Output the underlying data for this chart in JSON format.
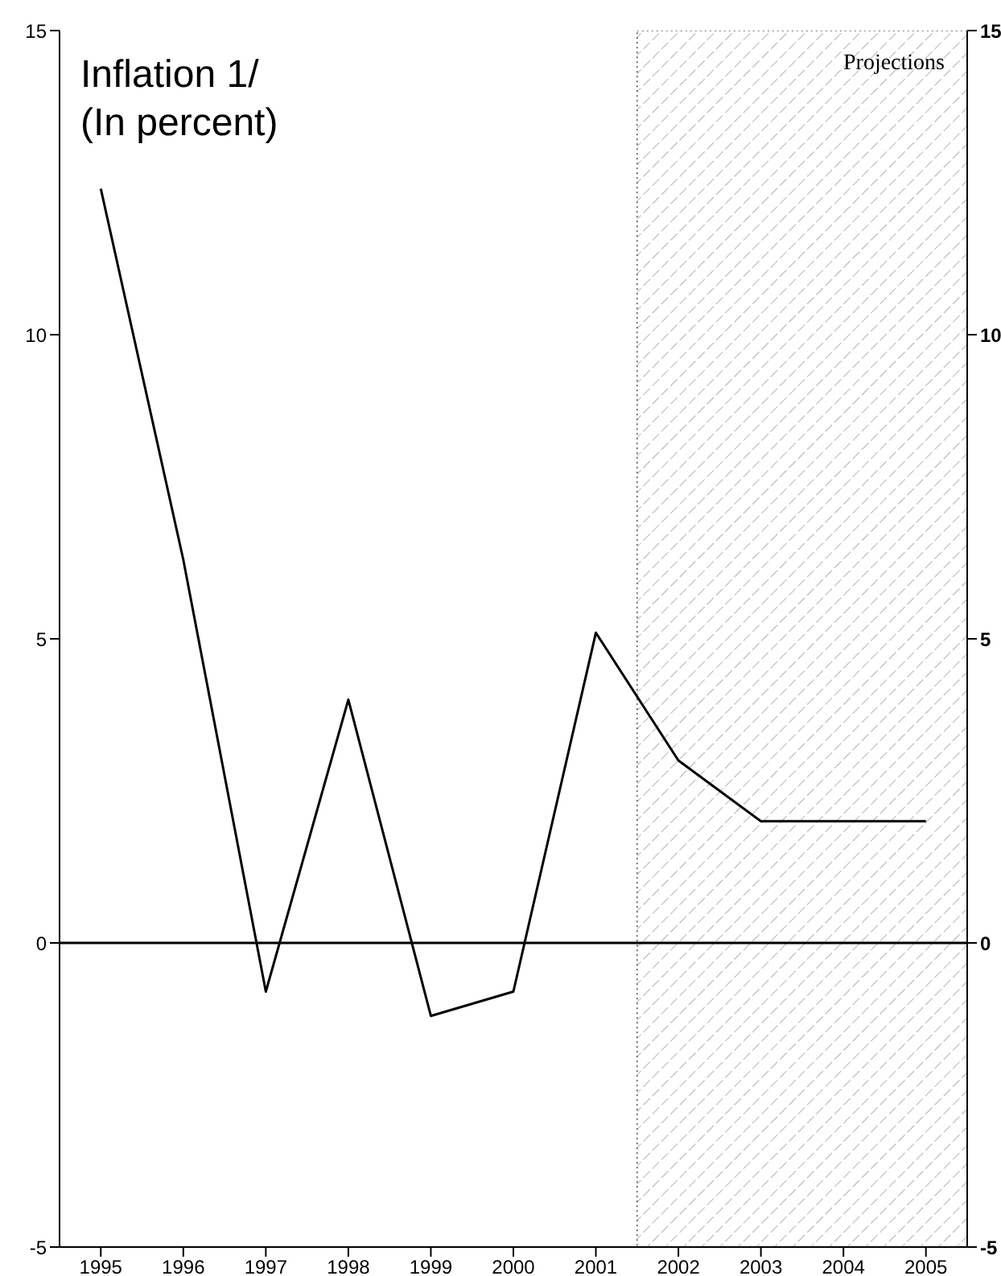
{
  "chart_data": {
    "type": "line",
    "title": "Inflation 1/",
    "subtitle": "(In percent)",
    "x": [
      1995,
      1996,
      1997,
      1998,
      1999,
      2000,
      2001,
      2002,
      2003,
      2004,
      2005
    ],
    "series": [
      {
        "color": "#000000",
        "values": [
          12.4,
          6.3,
          -0.8,
          4.0,
          -1.2,
          -0.8,
          5.1,
          3.0,
          2.0,
          2.0,
          2.0
        ]
      }
    ],
    "xlim": [
      1994.5,
      2005.5
    ],
    "xticks": [
      1995,
      1996,
      1997,
      1998,
      1999,
      2000,
      2001,
      2002,
      2003,
      2004,
      2005
    ],
    "ylim": [
      -5,
      15
    ],
    "yticks": [
      -5,
      0,
      5,
      10,
      15
    ],
    "y2lim": [
      -5,
      15
    ],
    "y2ticks": [
      -5,
      0,
      5,
      10,
      15
    ],
    "ref_lines": [
      {
        "axis": "y",
        "value": 0,
        "color": "#000000"
      }
    ],
    "bands": [
      {
        "axis": "x",
        "from": 2001.5,
        "to": 2005.5,
        "label": "Projections"
      }
    ],
    "marker": "none",
    "line_style": "solid"
  }
}
